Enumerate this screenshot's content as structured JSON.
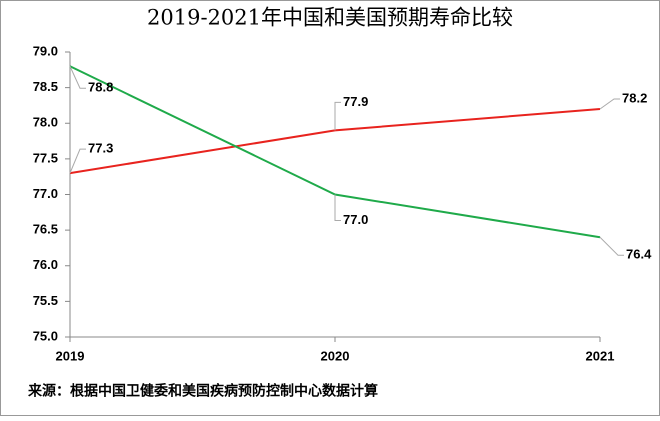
{
  "chart_data": {
    "type": "line",
    "title": "2019-2021年中国和美国预期寿命比较",
    "source": "来源：根据中国卫健委和美国疾病预防控制中心数据计算",
    "x": [
      2019,
      2020,
      2021
    ],
    "xlim": [
      2019,
      2021
    ],
    "xticks": [
      2019,
      2020,
      2021
    ],
    "ylim": [
      75,
      79
    ],
    "yticks": [
      {
        "value": 75,
        "label": "75.0"
      },
      75.5,
      {
        "value": 76,
        "label": "76.0"
      },
      76.5,
      {
        "value": 77,
        "label": "77.0"
      },
      77.5,
      {
        "value": 78,
        "label": "78.0"
      },
      78.5,
      {
        "value": 79,
        "label": "79.0"
      }
    ],
    "grid": false,
    "series": [
      {
        "color": "#e8231e",
        "values": [
          77.3,
          77.9,
          78.2
        ]
      },
      {
        "color": "#1faa4a",
        "values": [
          78.8,
          77.0,
          76.4
        ],
        "value_labels": [
          "78.8",
          "77.0",
          "76.4"
        ]
      }
    ]
  }
}
